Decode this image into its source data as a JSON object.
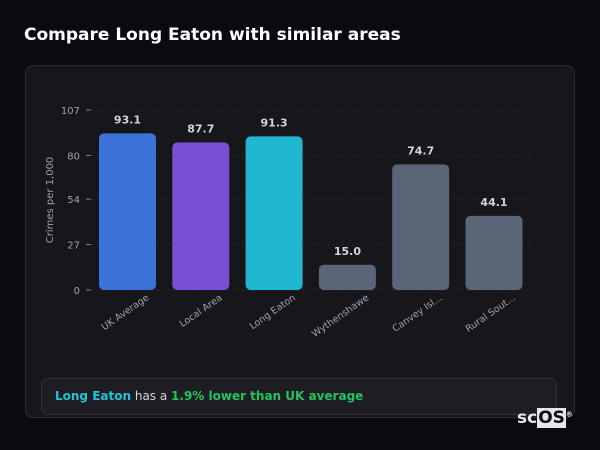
{
  "title": "Compare Long Eaton with similar areas",
  "chart_data": {
    "type": "bar",
    "categories": [
      "UK Average",
      "Local Area",
      "Long Eaton",
      "Wythenshawe",
      "Canvey Isl...",
      "Rural Sout..."
    ],
    "values": [
      93.1,
      87.7,
      91.3,
      15.0,
      74.7,
      44.1
    ],
    "data_labels": [
      "93.1",
      "87.7",
      "91.3",
      "15.0",
      "74.7",
      "44.1"
    ],
    "colors": [
      "#3b73d9",
      "#7b4fd4",
      "#20b8d0",
      "#5a6678",
      "#5a6678",
      "#5a6678"
    ],
    "ylabel": "Crimes per 1,000",
    "xlabel": "",
    "ylim": [
      0,
      107
    ],
    "yticks": [
      0,
      27,
      54,
      80,
      107
    ],
    "grid": true
  },
  "callout": {
    "area": "Long Eaton",
    "middle": " has a ",
    "comparison": "1.9% lower than UK average"
  },
  "logo": {
    "text_a": "sc",
    "text_b": "OS",
    "mark": "®"
  }
}
